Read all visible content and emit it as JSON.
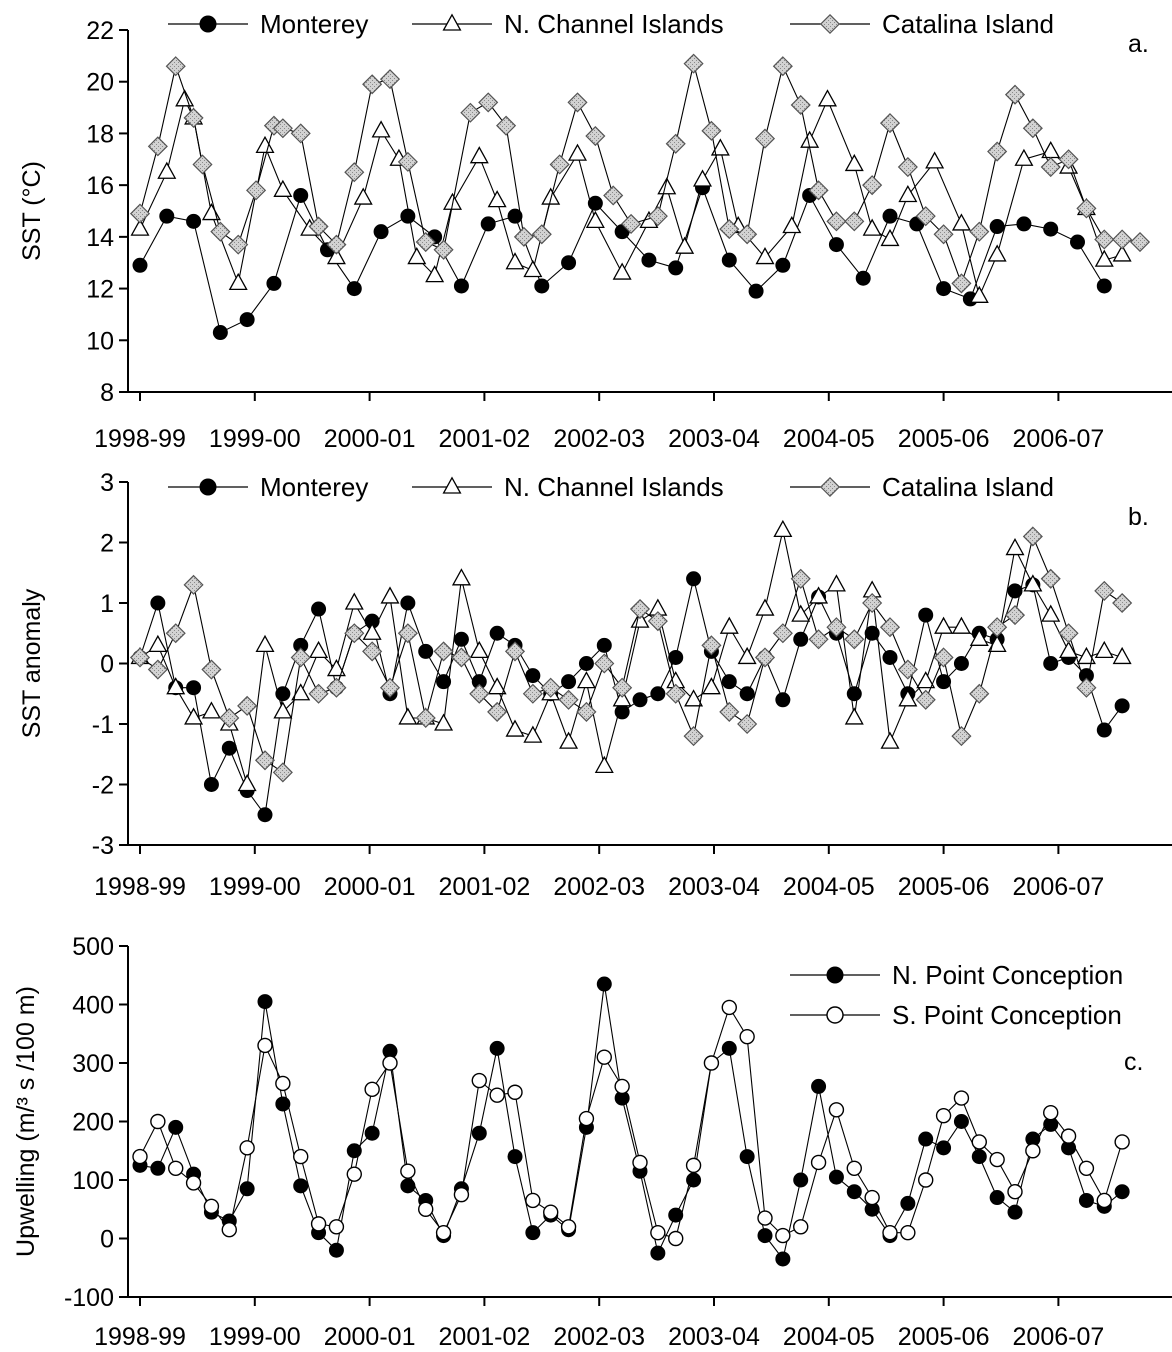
{
  "chart_data": [
    {
      "type": "line",
      "panel_letter": "a.",
      "ylabel": "SST (°C)",
      "ylim": [
        8,
        22
      ],
      "yticks": [
        8,
        10,
        12,
        14,
        16,
        18,
        20,
        22
      ],
      "xlim": [
        0,
        112
      ],
      "xticks": [
        "1998-99",
        "1999-00",
        "2000-01",
        "2001-02",
        "2002-03",
        "2003-04",
        "2004-05",
        "2005-06",
        "2006-07"
      ],
      "legend_position": "top",
      "series": [
        {
          "name": "Monterey",
          "marker": "circle-filled",
          "x": [
            0,
            3,
            6,
            9,
            12,
            15,
            18,
            21,
            24,
            27,
            30,
            33,
            36,
            39,
            42,
            45,
            48,
            51,
            54,
            57,
            60,
            63,
            66,
            69,
            72,
            75,
            78,
            81,
            84,
            87,
            90,
            93,
            96,
            99,
            102,
            105,
            108
          ],
          "values": [
            12.9,
            14.8,
            14.6,
            10.3,
            10.8,
            12.2,
            15.6,
            13.5,
            12.0,
            14.2,
            14.8,
            14.0,
            12.1,
            14.5,
            14.8,
            12.1,
            13.0,
            15.3,
            14.2,
            13.1,
            12.8,
            15.9,
            13.1,
            11.9,
            12.9,
            15.6,
            13.7,
            12.4,
            14.8,
            14.5,
            12.0,
            11.6,
            14.4,
            14.5,
            14.3,
            13.8,
            12.1
          ]
        },
        {
          "name": "N. Channel Islands",
          "marker": "triangle-open",
          "x": [
            0,
            3,
            5,
            6,
            8,
            11,
            14,
            16,
            19,
            22,
            25,
            27,
            29,
            31,
            33,
            35,
            38,
            40,
            42,
            44,
            46,
            49,
            51,
            54,
            57,
            59,
            61,
            63,
            65,
            67,
            70,
            73,
            75,
            77,
            80,
            82,
            84,
            86,
            89,
            92,
            94,
            96,
            99,
            102,
            104,
            106,
            108,
            110
          ],
          "values": [
            14.3,
            16.5,
            19.3,
            18.6,
            14.9,
            12.2,
            17.5,
            15.8,
            14.3,
            13.2,
            15.5,
            18.1,
            17.0,
            13.2,
            12.5,
            15.3,
            17.1,
            15.4,
            13.0,
            12.7,
            15.5,
            17.2,
            14.6,
            12.6,
            14.6,
            15.9,
            13.6,
            16.2,
            17.4,
            14.4,
            13.2,
            14.4,
            17.7,
            19.3,
            16.8,
            14.3,
            13.9,
            15.6,
            16.9,
            14.5,
            11.7,
            13.3,
            17.0,
            17.3,
            16.7,
            15.1,
            13.1,
            13.3
          ]
        },
        {
          "name": "Catalina Island",
          "marker": "diamond-filled",
          "x": [
            0,
            2,
            4,
            6,
            7,
            9,
            11,
            13,
            15,
            16,
            18,
            20,
            22,
            24,
            26,
            28,
            30,
            32,
            34,
            37,
            39,
            41,
            43,
            45,
            47,
            49,
            51,
            53,
            55,
            58,
            60,
            62,
            64,
            66,
            68,
            70,
            72,
            74,
            76,
            78,
            80,
            82,
            84,
            86,
            88,
            90,
            92,
            94,
            96,
            98,
            100,
            102,
            104,
            106,
            108,
            110,
            112
          ],
          "values": [
            14.9,
            17.5,
            20.6,
            18.6,
            16.8,
            14.2,
            13.7,
            15.8,
            18.3,
            18.2,
            18.0,
            14.4,
            13.7,
            16.5,
            19.9,
            20.1,
            16.9,
            13.8,
            13.5,
            18.8,
            19.2,
            18.3,
            14.0,
            14.1,
            16.8,
            19.2,
            17.9,
            15.6,
            14.5,
            14.8,
            17.6,
            20.7,
            18.1,
            14.3,
            14.1,
            17.8,
            20.6,
            19.1,
            15.8,
            14.6,
            14.6,
            16.0,
            18.4,
            16.7,
            14.8,
            14.1,
            12.2,
            14.2,
            17.3,
            19.5,
            18.2,
            16.7,
            17.0,
            15.1,
            13.9,
            13.9,
            13.8
          ]
        }
      ]
    },
    {
      "type": "line",
      "panel_letter": "b.",
      "ylabel": "SST anomaly",
      "ylim": [
        -3,
        3
      ],
      "yticks": [
        -3,
        -2,
        -1,
        0,
        1,
        2,
        3
      ],
      "xlim": [
        0,
        112
      ],
      "xticks": [
        "1998-99",
        "1999-00",
        "2000-01",
        "2001-02",
        "2002-03",
        "2003-04",
        "2004-05",
        "2005-06",
        "2006-07"
      ],
      "legend_position": "top",
      "series": [
        {
          "name": "Monterey",
          "marker": "circle-filled",
          "x": [
            0,
            2,
            4,
            6,
            8,
            10,
            12,
            14,
            16,
            18,
            20,
            22,
            24,
            26,
            28,
            30,
            32,
            34,
            36,
            38,
            40,
            42,
            44,
            46,
            48,
            50,
            52,
            54,
            56,
            58,
            60,
            62,
            64,
            66,
            68,
            70,
            72,
            74,
            76,
            78,
            80,
            82,
            84,
            86,
            88,
            90,
            92,
            94,
            96,
            98,
            100,
            102,
            104,
            106,
            108,
            110
          ],
          "values": [
            0.1,
            1.0,
            -0.4,
            -0.4,
            -2.0,
            -1.4,
            -2.1,
            -2.5,
            -0.5,
            0.3,
            0.9,
            -0.4,
            0.5,
            0.7,
            -0.5,
            1.0,
            0.2,
            -0.3,
            0.4,
            -0.3,
            0.5,
            0.3,
            -0.2,
            -0.5,
            -0.3,
            0.0,
            0.3,
            -0.8,
            -0.6,
            -0.5,
            0.1,
            1.4,
            0.2,
            -0.3,
            -0.5,
            0.1,
            -0.6,
            0.4,
            1.1,
            0.5,
            -0.5,
            0.5,
            0.1,
            -0.5,
            0.8,
            -0.3,
            0.0,
            0.5,
            0.4,
            1.2,
            1.3,
            0.0,
            0.1,
            -0.2,
            -1.1,
            -0.7
          ]
        },
        {
          "name": "N. Channel Islands",
          "marker": "triangle-open",
          "x": [
            0,
            2,
            4,
            6,
            8,
            10,
            12,
            14,
            16,
            18,
            20,
            22,
            24,
            26,
            28,
            30,
            32,
            34,
            36,
            38,
            40,
            42,
            44,
            46,
            48,
            50,
            52,
            54,
            56,
            58,
            60,
            62,
            64,
            66,
            68,
            70,
            72,
            74,
            76,
            78,
            80,
            82,
            84,
            86,
            88,
            90,
            92,
            94,
            96,
            98,
            100,
            102,
            104,
            106,
            108,
            110
          ],
          "values": [
            0.1,
            0.3,
            -0.4,
            -0.9,
            -0.8,
            -1.0,
            -2.0,
            0.3,
            -0.8,
            -0.5,
            0.2,
            -0.1,
            1.0,
            0.5,
            1.1,
            -0.9,
            -0.9,
            -1.0,
            1.4,
            0.2,
            -0.4,
            -1.1,
            -1.2,
            -0.5,
            -1.3,
            -0.3,
            -1.7,
            -0.6,
            0.7,
            0.9,
            -0.3,
            -0.6,
            -0.4,
            0.6,
            0.1,
            0.9,
            2.2,
            0.8,
            1.1,
            1.3,
            -0.9,
            1.2,
            -1.3,
            -0.6,
            -0.3,
            0.6,
            0.6,
            0.4,
            0.3,
            1.9,
            1.3,
            0.8,
            0.2,
            0.1,
            0.2,
            0.1
          ]
        },
        {
          "name": "Catalina Island",
          "marker": "diamond-filled",
          "x": [
            0,
            2,
            4,
            6,
            8,
            10,
            12,
            14,
            16,
            18,
            20,
            22,
            24,
            26,
            28,
            30,
            32,
            34,
            36,
            38,
            40,
            42,
            44,
            46,
            48,
            50,
            52,
            54,
            56,
            58,
            60,
            62,
            64,
            66,
            68,
            70,
            72,
            74,
            76,
            78,
            80,
            82,
            84,
            86,
            88,
            90,
            92,
            94,
            96,
            98,
            100,
            102,
            104,
            106,
            108,
            110
          ],
          "values": [
            0.1,
            -0.1,
            0.5,
            1.3,
            -0.1,
            -0.9,
            -0.7,
            -1.6,
            -1.8,
            0.1,
            -0.5,
            -0.4,
            0.5,
            0.2,
            -0.4,
            0.5,
            -0.9,
            0.2,
            0.1,
            -0.5,
            -0.8,
            0.2,
            -0.5,
            -0.4,
            -0.6,
            -0.8,
            0.0,
            -0.4,
            0.9,
            0.7,
            -0.5,
            -1.2,
            0.3,
            -0.8,
            -1.0,
            0.1,
            0.5,
            1.4,
            0.4,
            0.6,
            0.4,
            1.0,
            0.6,
            -0.1,
            -0.6,
            0.1,
            -1.2,
            -0.5,
            0.6,
            0.8,
            2.1,
            1.4,
            0.5,
            -0.4,
            1.2,
            1.0
          ]
        }
      ]
    },
    {
      "type": "line",
      "panel_letter": "c.",
      "ylabel": "Upwelling (m/³ s /100 m)",
      "ylim": [
        -100,
        500
      ],
      "yticks": [
        -100,
        0,
        100,
        200,
        300,
        400,
        500
      ],
      "xlim": [
        0,
        112
      ],
      "xticks": [
        "1998-99",
        "1999-00",
        "2000-01",
        "2001-02",
        "2002-03",
        "2003-04",
        "2004-05",
        "2005-06",
        "2006-07"
      ],
      "legend_position": "top-right",
      "series": [
        {
          "name": "N. Point Conception",
          "marker": "circle-filled",
          "x": [
            0,
            2,
            4,
            6,
            8,
            10,
            12,
            14,
            16,
            18,
            20,
            22,
            24,
            26,
            28,
            30,
            32,
            34,
            36,
            38,
            40,
            42,
            44,
            46,
            48,
            50,
            52,
            54,
            56,
            58,
            60,
            62,
            64,
            66,
            68,
            70,
            72,
            74,
            76,
            78,
            80,
            82,
            84,
            86,
            88,
            90,
            92,
            94,
            96,
            98,
            100,
            102,
            104,
            106,
            108,
            110
          ],
          "values": [
            125,
            120,
            190,
            110,
            45,
            30,
            85,
            405,
            230,
            90,
            10,
            -20,
            150,
            180,
            320,
            90,
            65,
            5,
            85,
            180,
            325,
            140,
            10,
            40,
            15,
            190,
            435,
            240,
            115,
            -25,
            40,
            100,
            300,
            325,
            140,
            5,
            -35,
            100,
            260,
            105,
            80,
            50,
            5,
            60,
            170,
            155,
            200,
            140,
            70,
            45,
            170,
            195,
            155,
            65,
            55,
            80
          ]
        },
        {
          "name": "S. Point Conception",
          "marker": "circle-open",
          "x": [
            0,
            2,
            4,
            6,
            8,
            10,
            12,
            14,
            16,
            18,
            20,
            22,
            24,
            26,
            28,
            30,
            32,
            34,
            36,
            38,
            40,
            42,
            44,
            46,
            48,
            50,
            52,
            54,
            56,
            58,
            60,
            62,
            64,
            66,
            68,
            70,
            72,
            74,
            76,
            78,
            80,
            82,
            84,
            86,
            88,
            90,
            92,
            94,
            96,
            98,
            100,
            102,
            104,
            106,
            108,
            110
          ],
          "values": [
            140,
            200,
            120,
            95,
            55,
            15,
            155,
            330,
            265,
            140,
            25,
            20,
            110,
            255,
            300,
            115,
            50,
            10,
            75,
            270,
            245,
            250,
            65,
            45,
            20,
            205,
            310,
            260,
            130,
            10,
            0,
            125,
            300,
            395,
            345,
            35,
            5,
            20,
            130,
            220,
            120,
            70,
            10,
            10,
            100,
            210,
            240,
            165,
            135,
            80,
            150,
            215,
            175,
            120,
            65,
            165
          ]
        }
      ]
    }
  ]
}
